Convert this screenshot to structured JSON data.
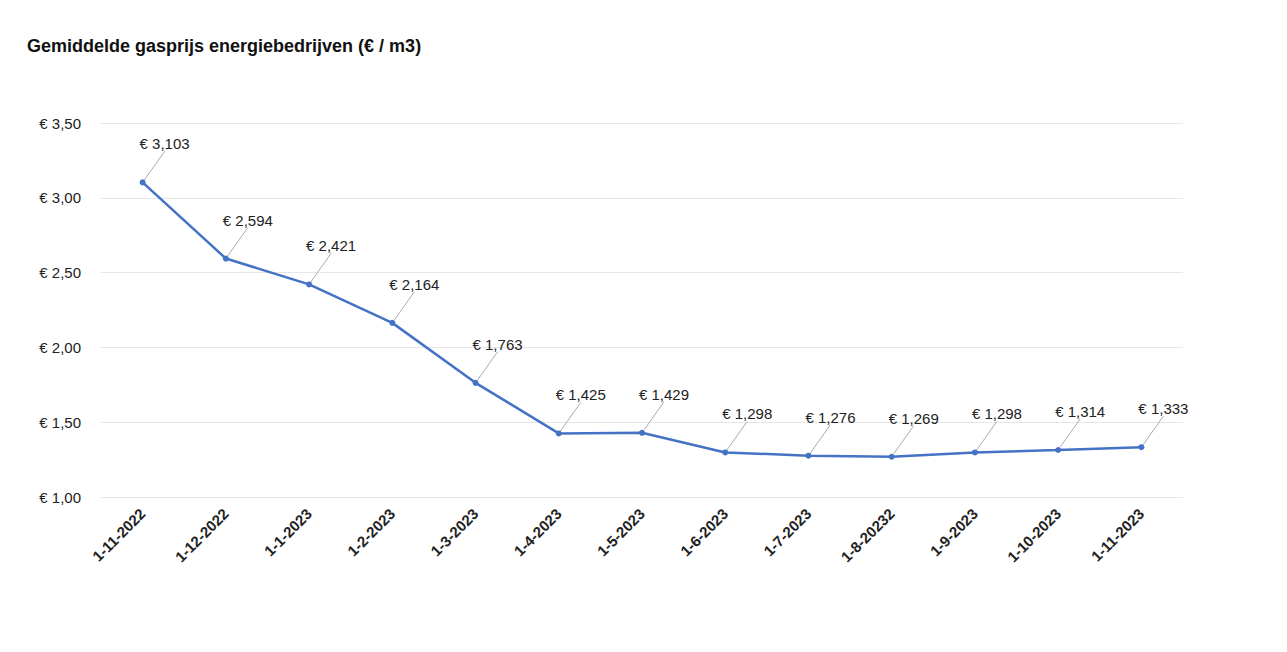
{
  "chart_data": {
    "type": "line",
    "title": "Gemiddelde gasprijs energiebedrijven (€ / m3)",
    "categories": [
      "1-11-2022",
      "1-12-2022",
      "1-1-2023",
      "1-2-2023",
      "1-3-2023",
      "1-4-2023",
      "1-5-2023",
      "1-6-2023",
      "1-7-2023",
      "1-8-20232",
      "1-9-2023",
      "1-10-2023",
      "1-11-2023"
    ],
    "values": [
      3.103,
      2.594,
      2.421,
      2.164,
      1.763,
      1.425,
      1.429,
      1.298,
      1.276,
      1.269,
      1.298,
      1.314,
      1.333
    ],
    "value_labels": [
      "€ 3,103",
      "€ 2,594",
      "€ 2,421",
      "€ 2,164",
      "€ 1,763",
      "€ 1,425",
      "€ 1,429",
      "€ 1,298",
      "€ 1,276",
      "€ 1,269",
      "€ 1,298",
      "€ 1,314",
      "€ 1,333"
    ],
    "color": "#4472c4",
    "ylim": [
      1,
      3.5
    ],
    "yticks": [
      {
        "value": 1,
        "label": "€ 1,00"
      },
      {
        "value": 1.5,
        "label": "€ 1,50"
      },
      {
        "value": 2,
        "label": "€ 2,00"
      },
      {
        "value": 2.5,
        "label": "€ 2,50"
      },
      {
        "value": 3,
        "label": "€ 3,00"
      },
      {
        "value": 3.5,
        "label": "€ 3,50"
      }
    ],
    "grid": true,
    "data_labels": true,
    "marker": "circle"
  }
}
